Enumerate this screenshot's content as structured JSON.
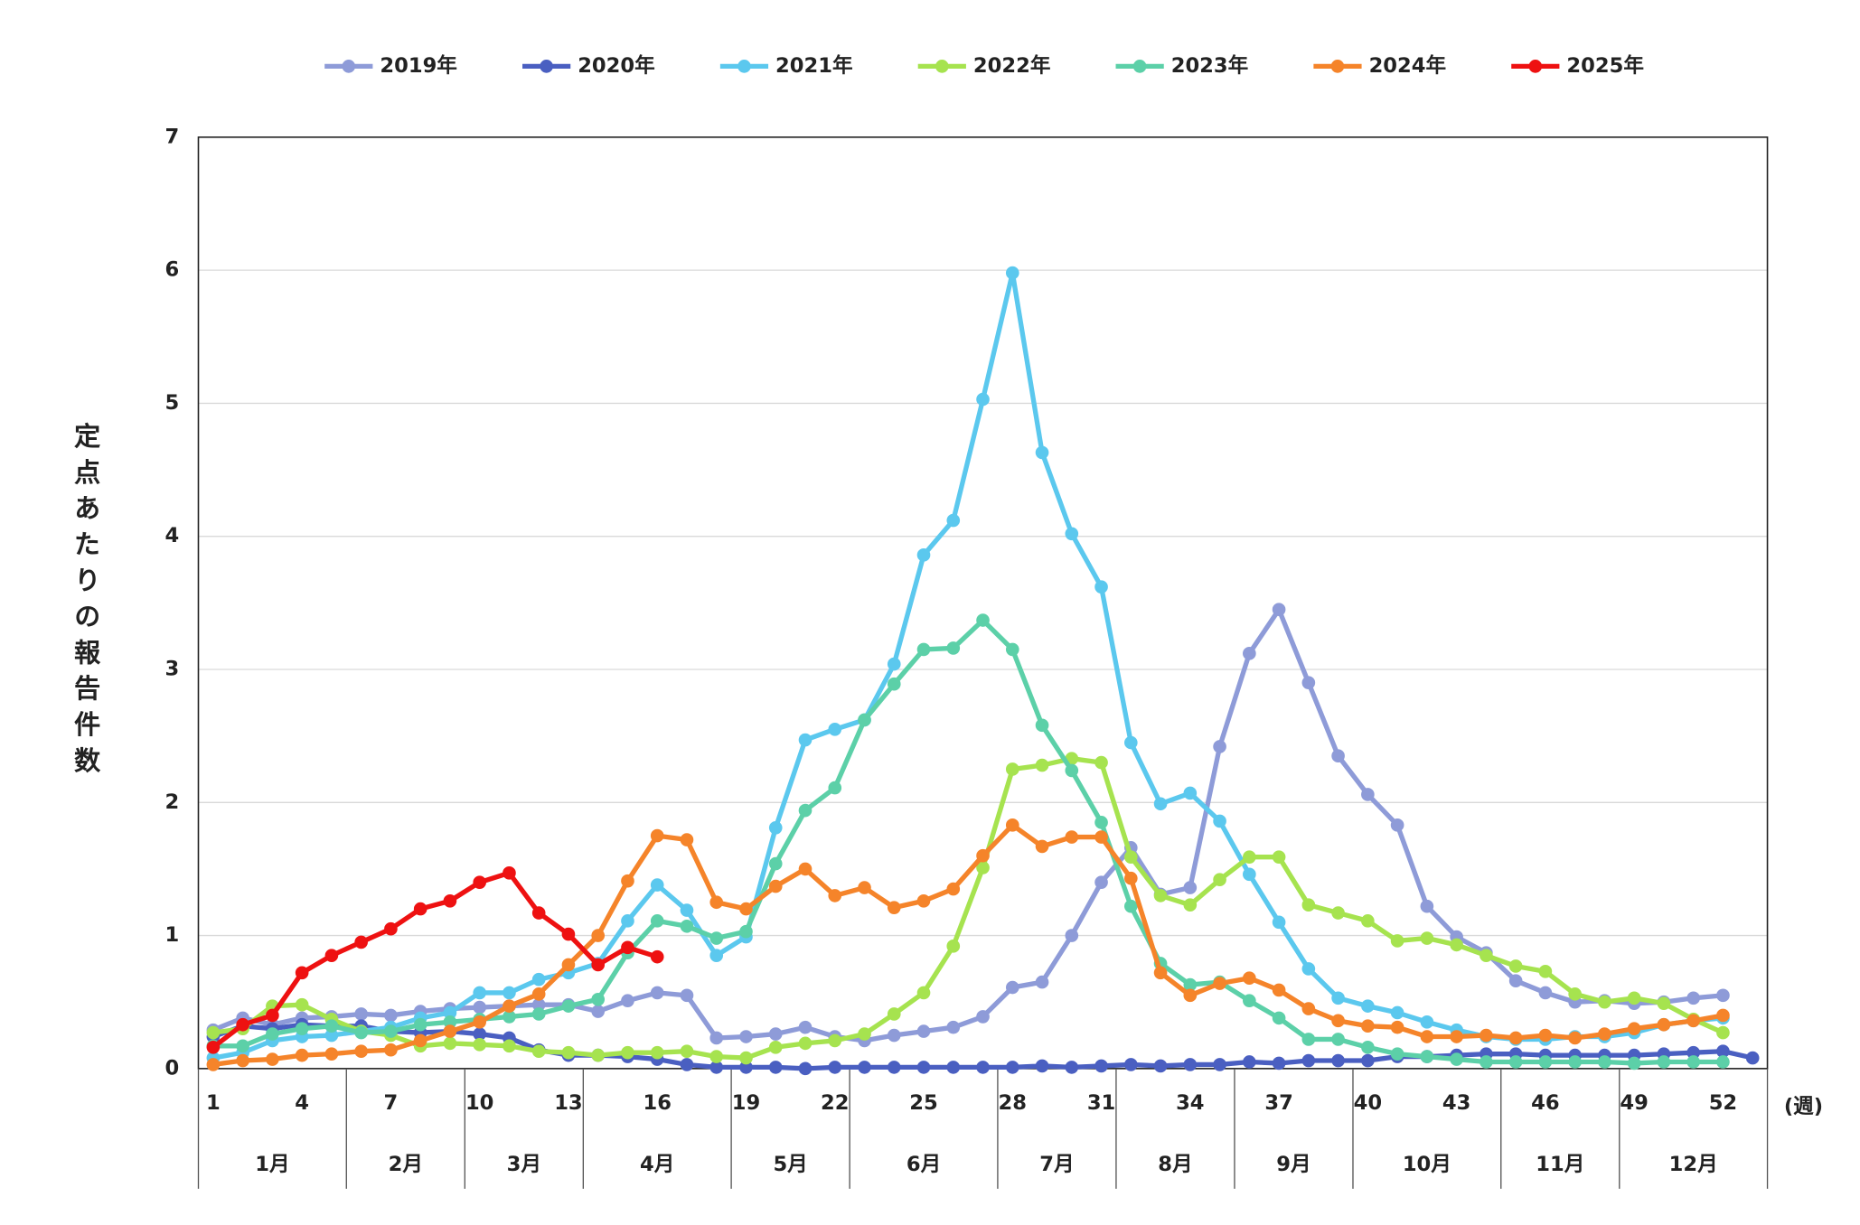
{
  "chart_data": {
    "type": "line",
    "y_label": "定点あたりの報告件数",
    "x_unit": "(週)",
    "x": [
      1,
      2,
      3,
      4,
      5,
      6,
      7,
      8,
      9,
      10,
      11,
      12,
      13,
      14,
      15,
      16,
      17,
      18,
      19,
      20,
      21,
      22,
      23,
      24,
      25,
      26,
      27,
      28,
      29,
      30,
      31,
      32,
      33,
      34,
      35,
      36,
      37,
      38,
      39,
      40,
      41,
      42,
      43,
      44,
      45,
      46,
      47,
      48,
      49,
      50,
      51,
      52,
      53
    ],
    "xlim": [
      0.5,
      53.5
    ],
    "xticks": [
      1,
      4,
      7,
      10,
      13,
      16,
      19,
      22,
      25,
      28,
      31,
      34,
      37,
      40,
      43,
      46,
      49,
      52
    ],
    "ylim": [
      0,
      7
    ],
    "yticks": [
      0,
      1,
      2,
      3,
      4,
      5,
      6,
      7
    ],
    "grid": true,
    "legend": "top",
    "months": [
      {
        "label": "1月",
        "start": 0.5,
        "end": 5.5
      },
      {
        "label": "2月",
        "start": 5.5,
        "end": 9.5
      },
      {
        "label": "3月",
        "start": 9.5,
        "end": 13.5
      },
      {
        "label": "4月",
        "start": 13.5,
        "end": 18.5
      },
      {
        "label": "5月",
        "start": 18.5,
        "end": 22.5
      },
      {
        "label": "6月",
        "start": 22.5,
        "end": 27.5
      },
      {
        "label": "7月",
        "start": 27.5,
        "end": 31.5
      },
      {
        "label": "8月",
        "start": 31.5,
        "end": 35.5
      },
      {
        "label": "9月",
        "start": 35.5,
        "end": 39.5
      },
      {
        "label": "10月",
        "start": 39.5,
        "end": 44.5
      },
      {
        "label": "11月",
        "start": 44.5,
        "end": 48.5
      },
      {
        "label": "12月",
        "start": 48.5,
        "end": 53.5
      }
    ],
    "series": [
      {
        "name": "2019年",
        "color": "#8e9bd8",
        "values": [
          0.29,
          0.38,
          0.33,
          0.38,
          0.39,
          0.41,
          0.4,
          0.43,
          0.45,
          0.46,
          0.47,
          0.48,
          0.48,
          0.43,
          0.51,
          0.57,
          0.55,
          0.23,
          0.24,
          0.26,
          0.31,
          0.24,
          0.21,
          0.25,
          0.28,
          0.31,
          0.39,
          0.61,
          0.65,
          1.0,
          1.4,
          1.66,
          1.31,
          1.36,
          2.42,
          3.12,
          3.45,
          2.9,
          2.35,
          2.06,
          1.83,
          1.22,
          0.99,
          0.87,
          0.66,
          0.57,
          0.5,
          0.51,
          0.49,
          0.5,
          0.53,
          0.55,
          null
        ]
      },
      {
        "name": "2020年",
        "color": "#4a5fc1",
        "values": [
          0.24,
          0.32,
          0.3,
          0.33,
          0.32,
          0.32,
          0.28,
          0.27,
          0.28,
          0.26,
          0.23,
          0.14,
          0.1,
          0.1,
          0.09,
          0.07,
          0.03,
          0.01,
          0.01,
          0.01,
          0,
          0.01,
          0.01,
          0.01,
          0.01,
          0.01,
          0.01,
          0.01,
          0.02,
          0.01,
          0.02,
          0.03,
          0.02,
          0.03,
          0.03,
          0.05,
          0.04,
          0.06,
          0.06,
          0.06,
          0.09,
          0.09,
          0.1,
          0.11,
          0.11,
          0.1,
          0.1,
          0.1,
          0.1,
          0.11,
          0.12,
          0.13,
          0.08
        ]
      },
      {
        "name": "2021年",
        "color": "#5bc8ee",
        "values": [
          0.08,
          0.12,
          0.21,
          0.24,
          0.25,
          0.28,
          0.31,
          0.38,
          0.42,
          0.57,
          0.57,
          0.67,
          0.72,
          0.79,
          1.11,
          1.38,
          1.19,
          0.85,
          0.99,
          1.81,
          2.47,
          2.55,
          2.62,
          3.04,
          3.86,
          4.12,
          5.03,
          5.98,
          4.63,
          4.02,
          3.62,
          2.45,
          1.99,
          2.07,
          1.86,
          1.46,
          1.1,
          0.75,
          0.53,
          0.47,
          0.42,
          0.35,
          0.29,
          0.24,
          0.22,
          0.22,
          0.24,
          0.24,
          0.27,
          0.33,
          0.36,
          0.38,
          null
        ]
      },
      {
        "name": "2022年",
        "color": "#a6e34f",
        "values": [
          0.27,
          0.3,
          0.47,
          0.48,
          0.37,
          0.28,
          0.25,
          0.17,
          0.19,
          0.18,
          0.17,
          0.13,
          0.12,
          0.1,
          0.12,
          0.12,
          0.13,
          0.09,
          0.08,
          0.16,
          0.19,
          0.21,
          0.26,
          0.41,
          0.57,
          0.92,
          1.51,
          2.25,
          2.28,
          2.33,
          2.3,
          1.59,
          1.3,
          1.23,
          1.42,
          1.59,
          1.59,
          1.23,
          1.17,
          1.11,
          0.96,
          0.98,
          0.93,
          0.85,
          0.77,
          0.73,
          0.56,
          0.5,
          0.53,
          0.49,
          0.37,
          0.27,
          null
        ]
      },
      {
        "name": "2023年",
        "color": "#5cd0a8",
        "values": [
          0.17,
          0.17,
          0.26,
          0.3,
          0.32,
          0.27,
          0.28,
          0.33,
          0.35,
          0.37,
          0.39,
          0.41,
          0.47,
          0.52,
          0.87,
          1.11,
          1.07,
          0.98,
          1.03,
          1.54,
          1.94,
          2.11,
          2.62,
          2.89,
          3.15,
          3.16,
          3.37,
          3.15,
          2.58,
          2.24,
          1.85,
          1.22,
          0.79,
          0.63,
          0.65,
          0.51,
          0.38,
          0.22,
          0.22,
          0.16,
          0.11,
          0.09,
          0.07,
          0.05,
          0.05,
          0.05,
          0.05,
          0.05,
          0.04,
          0.05,
          0.05,
          0.05,
          null
        ]
      },
      {
        "name": "2024年",
        "color": "#f5842a",
        "values": [
          0.03,
          0.06,
          0.07,
          0.1,
          0.11,
          0.13,
          0.14,
          0.21,
          0.28,
          0.35,
          0.47,
          0.56,
          0.78,
          1.0,
          1.41,
          1.75,
          1.72,
          1.25,
          1.2,
          1.37,
          1.5,
          1.3,
          1.36,
          1.21,
          1.26,
          1.35,
          1.6,
          1.83,
          1.67,
          1.74,
          1.74,
          1.43,
          0.72,
          0.55,
          0.64,
          0.68,
          0.59,
          0.45,
          0.36,
          0.32,
          0.31,
          0.24,
          0.24,
          0.25,
          0.23,
          0.25,
          0.23,
          0.26,
          0.3,
          0.33,
          0.36,
          0.4,
          null
        ]
      },
      {
        "name": "2025年",
        "color": "#ee1111",
        "values": [
          0.16,
          0.33,
          0.4,
          0.72,
          0.85,
          0.95,
          1.05,
          1.2,
          1.26,
          1.4,
          1.47,
          1.17,
          1.01,
          0.78,
          0.91,
          0.84,
          null,
          null,
          null,
          null,
          null,
          null,
          null,
          null,
          null,
          null,
          null,
          null,
          null,
          null,
          null,
          null,
          null,
          null,
          null,
          null,
          null,
          null,
          null,
          null,
          null,
          null,
          null,
          null,
          null,
          null,
          null,
          null,
          null,
          null,
          null,
          null,
          null
        ]
      }
    ]
  }
}
